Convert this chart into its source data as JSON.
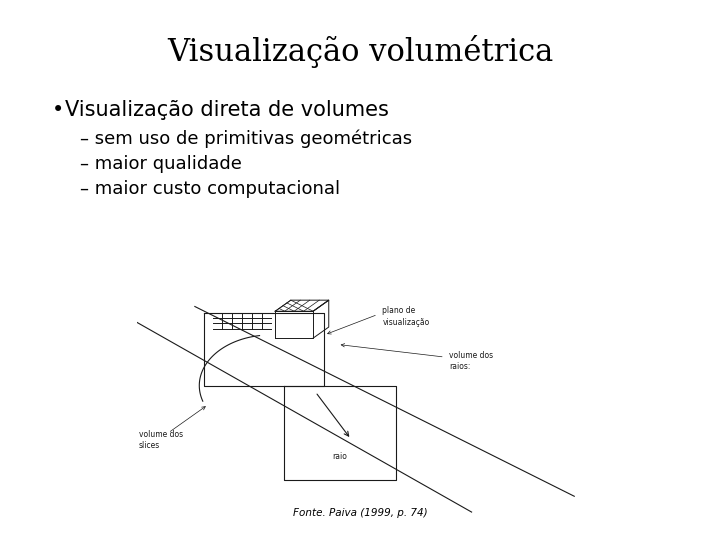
{
  "title": "Visualização volumétrica",
  "bullet": "Visualização direta de volumes",
  "sub1": "– sem uso de primitivas geométricas",
  "sub2": "– maior qualidade",
  "sub3": "– maior custo computacional",
  "caption": "Fonte. Paiva (1999, p. 74)",
  "bg_color": "#ffffff",
  "text_color": "#000000",
  "title_fontsize": 22,
  "bullet_fontsize": 15,
  "sub_fontsize": 13,
  "caption_fontsize": 7.5
}
